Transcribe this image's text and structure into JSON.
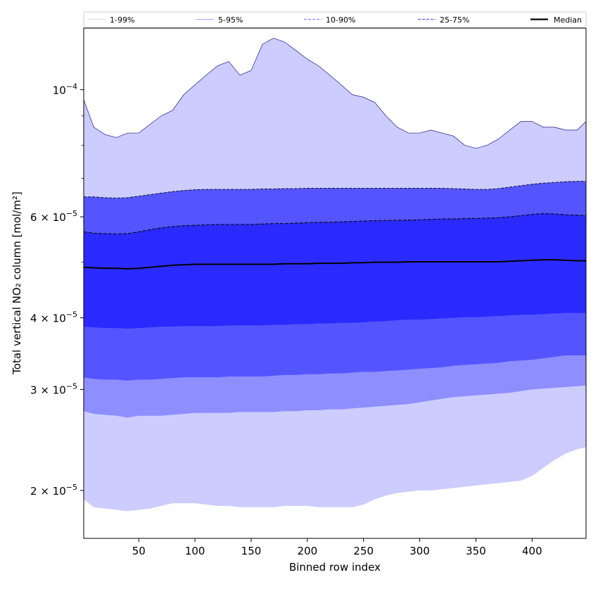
{
  "chart_data": {
    "type": "area",
    "xlabel": "Binned row index",
    "ylabel": "Total vertical NO₂ column [mol/m²]",
    "y_scale": "log",
    "xlim": [
      1,
      448
    ],
    "ylim": [
      1.65e-05,
      0.000128
    ],
    "x_ticks": [
      50,
      100,
      150,
      200,
      250,
      300,
      350,
      400
    ],
    "y_ticks": [
      {
        "value": 0.0001,
        "mantissa": "",
        "base": "10",
        "exponent": "−4"
      },
      {
        "value": 6e-05,
        "mantissa": "6 × ",
        "base": "10",
        "exponent": "−5"
      },
      {
        "value": 4e-05,
        "mantissa": "4 × ",
        "base": "10",
        "exponent": "−5"
      },
      {
        "value": 3e-05,
        "mantissa": "3 × ",
        "base": "10",
        "exponent": "−5"
      },
      {
        "value": 2e-05,
        "mantissa": "2 × ",
        "base": "10",
        "exponent": "−5"
      }
    ],
    "legend": {
      "placement": "top, spanning",
      "entries": [
        {
          "label": "1-99%",
          "color": "#ccccff",
          "style": "solid-thin"
        },
        {
          "label": "5-95%",
          "color": "#8888ff",
          "style": "solid-thin"
        },
        {
          "label": "10-90%",
          "color": "#8888ff",
          "style": "dashed"
        },
        {
          "label": "25-75%",
          "color": "#5555ff",
          "style": "dashed"
        },
        {
          "label": "Median",
          "color": "#000000",
          "style": "solid-thick"
        }
      ]
    },
    "band_colors": [
      "#ccccff",
      "#8e8eff",
      "#5555ff",
      "#2a2aff"
    ],
    "x": [
      1,
      10,
      20,
      30,
      40,
      50,
      60,
      70,
      80,
      90,
      100,
      110,
      120,
      130,
      140,
      150,
      160,
      170,
      180,
      190,
      200,
      210,
      220,
      230,
      240,
      250,
      260,
      270,
      280,
      290,
      300,
      310,
      320,
      330,
      340,
      350,
      360,
      370,
      380,
      390,
      400,
      410,
      420,
      430,
      440,
      448
    ],
    "series": [
      {
        "name": "1-99%",
        "lower": [
          1.93e-05,
          1.87e-05,
          1.86e-05,
          1.85e-05,
          1.84e-05,
          1.85e-05,
          1.86e-05,
          1.88e-05,
          1.9e-05,
          1.9e-05,
          1.9e-05,
          1.89e-05,
          1.88e-05,
          1.88e-05,
          1.87e-05,
          1.87e-05,
          1.87e-05,
          1.87e-05,
          1.88e-05,
          1.88e-05,
          1.88e-05,
          1.87e-05,
          1.87e-05,
          1.87e-05,
          1.87e-05,
          1.89e-05,
          1.93e-05,
          1.96e-05,
          1.98e-05,
          1.99e-05,
          2e-05,
          2e-05,
          2.01e-05,
          2.02e-05,
          2.03e-05,
          2.04e-05,
          2.05e-05,
          2.06e-05,
          2.07e-05,
          2.08e-05,
          2.12e-05,
          2.19e-05,
          2.26e-05,
          2.32e-05,
          2.36e-05,
          2.38e-05
        ],
        "upper": [
          9.6e-05,
          8.6e-05,
          8.35e-05,
          8.25e-05,
          8.4e-05,
          8.4e-05,
          8.7e-05,
          9e-05,
          9.2e-05,
          9.8e-05,
          0.000102,
          0.000106,
          0.00011,
          0.000112,
          0.000106,
          0.000108,
          0.00012,
          0.000123,
          0.000121,
          0.000117,
          0.000113,
          0.00011,
          0.000106,
          0.000102,
          9.8e-05,
          9.7e-05,
          9.5e-05,
          9e-05,
          8.6e-05,
          8.4e-05,
          8.4e-05,
          8.5e-05,
          8.4e-05,
          8.3e-05,
          8e-05,
          7.9e-05,
          8e-05,
          8.2e-05,
          8.5e-05,
          8.8e-05,
          8.8e-05,
          8.6e-05,
          8.6e-05,
          8.5e-05,
          8.5e-05,
          8.8e-05
        ]
      },
      {
        "name": "5-95%",
        "lower": [
          2.75e-05,
          2.72e-05,
          2.71e-05,
          2.7e-05,
          2.68e-05,
          2.7e-05,
          2.7e-05,
          2.7e-05,
          2.71e-05,
          2.72e-05,
          2.73e-05,
          2.73e-05,
          2.73e-05,
          2.73e-05,
          2.74e-05,
          2.74e-05,
          2.74e-05,
          2.74e-05,
          2.75e-05,
          2.75e-05,
          2.76e-05,
          2.76e-05,
          2.77e-05,
          2.77e-05,
          2.78e-05,
          2.79e-05,
          2.8e-05,
          2.81e-05,
          2.82e-05,
          2.83e-05,
          2.85e-05,
          2.87e-05,
          2.89e-05,
          2.91e-05,
          2.92e-05,
          2.93e-05,
          2.94e-05,
          2.95e-05,
          2.96e-05,
          2.98e-05,
          3e-05,
          3.01e-05,
          3.02e-05,
          3.03e-05,
          3.04e-05,
          3.05e-05
        ]
      },
      {
        "name": "10-90%",
        "lower": [
          3.15e-05,
          3.13e-05,
          3.12e-05,
          3.12e-05,
          3.11e-05,
          3.12e-05,
          3.12e-05,
          3.13e-05,
          3.14e-05,
          3.15e-05,
          3.15e-05,
          3.15e-05,
          3.15e-05,
          3.16e-05,
          3.16e-05,
          3.16e-05,
          3.16e-05,
          3.17e-05,
          3.18e-05,
          3.18e-05,
          3.19e-05,
          3.19e-05,
          3.2e-05,
          3.2e-05,
          3.21e-05,
          3.22e-05,
          3.22e-05,
          3.23e-05,
          3.24e-05,
          3.25e-05,
          3.26e-05,
          3.27e-05,
          3.28e-05,
          3.3e-05,
          3.31e-05,
          3.32e-05,
          3.33e-05,
          3.34e-05,
          3.36e-05,
          3.37e-05,
          3.38e-05,
          3.4e-05,
          3.42e-05,
          3.44e-05,
          3.44e-05,
          3.44e-05
        ],
        "upper": [
          6.5e-05,
          6.5e-05,
          6.48e-05,
          6.47e-05,
          6.48e-05,
          6.52e-05,
          6.56e-05,
          6.6e-05,
          6.64e-05,
          6.67e-05,
          6.69e-05,
          6.7e-05,
          6.7e-05,
          6.7e-05,
          6.7e-05,
          6.7e-05,
          6.71e-05,
          6.71e-05,
          6.72e-05,
          6.72e-05,
          6.73e-05,
          6.73e-05,
          6.73e-05,
          6.73e-05,
          6.73e-05,
          6.73e-05,
          6.73e-05,
          6.73e-05,
          6.73e-05,
          6.73e-05,
          6.73e-05,
          6.73e-05,
          6.73e-05,
          6.72e-05,
          6.71e-05,
          6.7e-05,
          6.7e-05,
          6.72e-05,
          6.76e-05,
          6.8e-05,
          6.84e-05,
          6.87e-05,
          6.89e-05,
          6.91e-05,
          6.92e-05,
          6.92e-05
        ]
      },
      {
        "name": "25-75%",
        "lower": [
          3.86e-05,
          3.85e-05,
          3.84e-05,
          3.84e-05,
          3.83e-05,
          3.84e-05,
          3.85e-05,
          3.86e-05,
          3.86e-05,
          3.87e-05,
          3.87e-05,
          3.87e-05,
          3.87e-05,
          3.88e-05,
          3.88e-05,
          3.88e-05,
          3.88e-05,
          3.89e-05,
          3.89e-05,
          3.9e-05,
          3.9e-05,
          3.91e-05,
          3.91e-05,
          3.92e-05,
          3.92e-05,
          3.93e-05,
          3.94e-05,
          3.95e-05,
          3.96e-05,
          3.97e-05,
          3.97e-05,
          3.98e-05,
          3.99e-05,
          4e-05,
          4.01e-05,
          4.01e-05,
          4.02e-05,
          4.03e-05,
          4.04e-05,
          4.05e-05,
          4.05e-05,
          4.06e-05,
          4.07e-05,
          4.08e-05,
          4.08e-05,
          4.08e-05
        ],
        "upper": [
          5.65e-05,
          5.62e-05,
          5.61e-05,
          5.6e-05,
          5.61e-05,
          5.65e-05,
          5.7e-05,
          5.74e-05,
          5.77e-05,
          5.79e-05,
          5.8e-05,
          5.81e-05,
          5.82e-05,
          5.82e-05,
          5.82e-05,
          5.82e-05,
          5.83e-05,
          5.84e-05,
          5.84e-05,
          5.85e-05,
          5.86e-05,
          5.87e-05,
          5.87e-05,
          5.88e-05,
          5.89e-05,
          5.9e-05,
          5.91e-05,
          5.91e-05,
          5.92e-05,
          5.92e-05,
          5.93e-05,
          5.94e-05,
          5.95e-05,
          5.95e-05,
          5.96e-05,
          5.96e-05,
          5.97e-05,
          5.98e-05,
          6e-05,
          6.03e-05,
          6.06e-05,
          6.08e-05,
          6.07e-05,
          6.05e-05,
          6.04e-05,
          6.03e-05
        ]
      },
      {
        "name": "Median",
        "values": [
          4.9e-05,
          4.89e-05,
          4.88e-05,
          4.88e-05,
          4.87e-05,
          4.88e-05,
          4.9e-05,
          4.92e-05,
          4.94e-05,
          4.95e-05,
          4.96e-05,
          4.96e-05,
          4.96e-05,
          4.96e-05,
          4.96e-05,
          4.96e-05,
          4.96e-05,
          4.96e-05,
          4.97e-05,
          4.97e-05,
          4.97e-05,
          4.98e-05,
          4.98e-05,
          4.98e-05,
          4.99e-05,
          4.99e-05,
          5e-05,
          5e-05,
          5e-05,
          5.01e-05,
          5.01e-05,
          5.01e-05,
          5.01e-05,
          5.01e-05,
          5.01e-05,
          5.01e-05,
          5.01e-05,
          5.01e-05,
          5.02e-05,
          5.03e-05,
          5.04e-05,
          5.05e-05,
          5.05e-05,
          5.04e-05,
          5.03e-05,
          5.03e-05
        ]
      }
    ]
  }
}
